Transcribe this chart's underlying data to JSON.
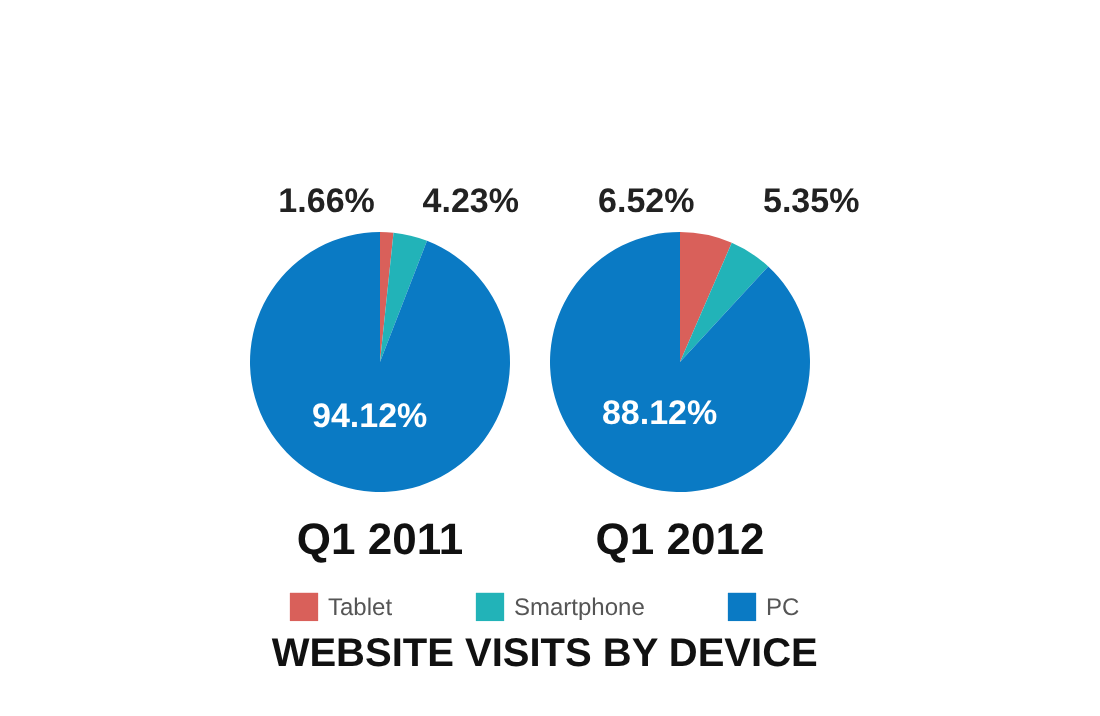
{
  "chart_data": [
    {
      "type": "pie",
      "title": "Q1 2011",
      "categories": [
        "Tablet",
        "Smartphone",
        "PC"
      ],
      "values": [
        1.66,
        4.23,
        94.12
      ],
      "value_labels": [
        "1.66%",
        "4.23%",
        "94.12%"
      ],
      "colors": [
        "#d9605a",
        "#22b3b8",
        "#0a7ac4"
      ],
      "legend": "bottom"
    },
    {
      "type": "pie",
      "title": "Q1 2012",
      "categories": [
        null,
        null,
        null
      ],
      "values": [
        6.52,
        5.35,
        88.12
      ],
      "value_labels": [
        "6.52%",
        "5.35%",
        "88.12%"
      ],
      "colors": [
        "#d9605a",
        "#22b3b8",
        "#0a7ac4"
      ]
    },
    {
      "type": "other",
      "title": "WEBSITE VISITS BY DEVICE"
    }
  ]
}
